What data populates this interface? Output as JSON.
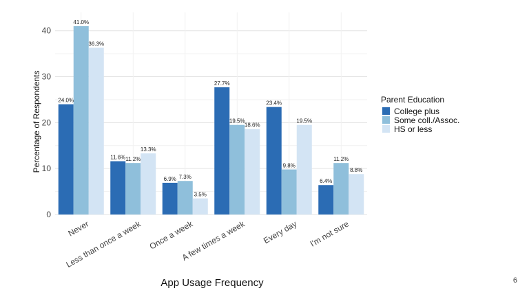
{
  "chart_data": {
    "type": "bar",
    "title": "",
    "xlabel": "App Usage Frequency",
    "ylabel": "Percentage of Respondents",
    "ylim": [
      0,
      44
    ],
    "yticks": [
      0,
      10,
      20,
      30,
      40
    ],
    "grid": true,
    "legend_title": "Parent Education",
    "legend_position": "right",
    "categories": [
      "Never",
      "Less than once a week",
      "Once a week",
      "A few times a week",
      "Every day",
      "I'm not sure"
    ],
    "series": [
      {
        "name": "College plus",
        "color": "#2b6cb4",
        "values": [
          24.0,
          11.6,
          6.9,
          27.7,
          23.4,
          6.4
        ],
        "labels": [
          "24.0%",
          "11.6%",
          "6.9%",
          "27.7%",
          "23.4%",
          "6.4%"
        ]
      },
      {
        "name": "Some coll./Assoc.",
        "color": "#8fbfdb",
        "values": [
          41.0,
          11.2,
          7.3,
          19.5,
          9.8,
          11.2
        ],
        "labels": [
          "41.0%",
          "11.2%",
          "7.3%",
          "19.5%",
          "9.8%",
          "11.2%"
        ]
      },
      {
        "name": "HS or less",
        "color": "#d3e4f4",
        "values": [
          36.3,
          13.3,
          3.5,
          18.6,
          19.5,
          8.8
        ],
        "labels": [
          "36.3%",
          "13.3%",
          "3.5%",
          "18.6%",
          "19.5%",
          "8.8%"
        ]
      }
    ]
  },
  "page": {
    "number": "6"
  }
}
